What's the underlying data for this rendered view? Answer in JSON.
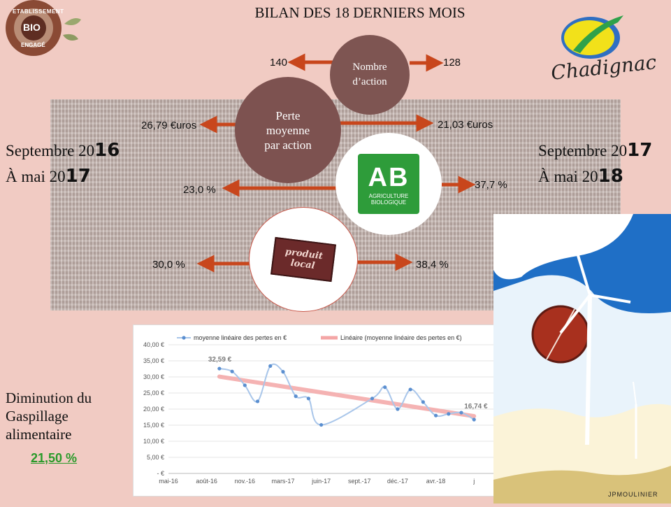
{
  "title": "BILAN DES 18 DERNIERS MOIS",
  "badge": {
    "top": "ETABLISSEMENT",
    "center": "BIO",
    "bottom": "ENGAGÉ"
  },
  "logo_text": "Chadignac",
  "left_period": {
    "line1_prefix": "Septembre 20",
    "line1_bold": "16",
    "line2_prefix": "À mai 20",
    "line2_bold": "17"
  },
  "right_period": {
    "line1_prefix": "Septembre 20",
    "line1_bold": "17",
    "line2_prefix": "À mai 20",
    "line2_bold": "18"
  },
  "metrics": {
    "actions": {
      "label_1": "Nombre",
      "label_2": "d’action",
      "before": "140",
      "after": "128"
    },
    "loss": {
      "label_1": "Perte",
      "label_2": "moyenne",
      "label_3": "par action",
      "before": "26,79 €uros",
      "after": "21,03 €uros"
    },
    "bio": {
      "logo_letters": "AB",
      "logo_line1": "AGRICULTURE",
      "logo_line2": "BIOLOGIQUE",
      "before": "23,0 %",
      "after": "37,7 %"
    },
    "local": {
      "sign_line1": "produit",
      "sign_line2": "local",
      "before": "30,0 %",
      "after": "38,4 %"
    }
  },
  "summary": {
    "line1": "Diminution du",
    "line2": "Gaspillage",
    "line3": "alimentaire",
    "value": "21,50 %"
  },
  "signature": "JPMOULINIER",
  "colors": {
    "arrow": "#c8461c",
    "circle_dark": "#7e5552",
    "circle_brown": "#7d5250",
    "ab_green": "#2e9c3a",
    "series": "#5b8fd0",
    "trend": "#f4a6a6",
    "summary_green": "#2a9a2a"
  },
  "chart_data": {
    "type": "line",
    "legend": [
      "moyenne linéaire des pertes en €",
      "Linéaire (moyenne linéaire des pertes en €)"
    ],
    "y_ticks": [
      "40,00 €",
      "35,00 €",
      "30,00 €",
      "25,00 €",
      "20,00 €",
      "15,00 €",
      "10,00 €",
      "5,00 €",
      "-   €"
    ],
    "x_ticks": [
      "mai-16",
      "août-16",
      "nov.-16",
      "mars-17",
      "juin-17",
      "sept.-17",
      "déc.-17",
      "avr.-18",
      "j"
    ],
    "ylim": [
      0,
      40
    ],
    "series": [
      {
        "name": "moyenne linéaire des pertes en €",
        "x": [
          "2016-09-01",
          "2016-10-01",
          "2016-11-01",
          "2016-12-01",
          "2017-01-01",
          "2017-02-01",
          "2017-03-01",
          "2017-04-01",
          "2017-05-01",
          "2017-09-01",
          "2017-10-01",
          "2017-11-01",
          "2017-12-01",
          "2018-01-01",
          "2018-02-01",
          "2018-03-01",
          "2018-04-01",
          "2018-05-01"
        ],
        "values": [
          32.59,
          31.7,
          27.4,
          22.4,
          33.4,
          31.6,
          24.0,
          23.3,
          15.1,
          23.3,
          26.8,
          20.0,
          26.1,
          22.2,
          18.0,
          18.5,
          18.9,
          16.74
        ]
      },
      {
        "name": "Linéaire (moyenne linéaire des pertes en €)",
        "x": [
          "2016-09-01",
          "2018-05-01"
        ],
        "values": [
          30.1,
          17.8
        ]
      }
    ],
    "data_labels": [
      {
        "text": "32,59 €"
      },
      {
        "text": "16,74 €"
      }
    ]
  }
}
